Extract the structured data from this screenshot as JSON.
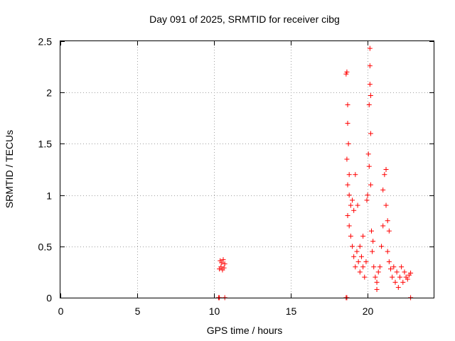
{
  "chart_data": {
    "type": "scatter",
    "title": "Day 091 of 2025, SRMTID for receiver cibg",
    "xlabel": "GPS time / hours",
    "ylabel": "SRMTID / TECUs",
    "xlim": [
      0,
      24.3
    ],
    "ylim": [
      0,
      2.5
    ],
    "xticks": [
      0,
      5,
      10,
      15,
      20
    ],
    "xtick_labels": [
      "0",
      "5",
      "10",
      "15",
      "20"
    ],
    "yticks": [
      0,
      0.5,
      1,
      1.5,
      2,
      2.5
    ],
    "ytick_labels": [
      "0",
      "0.5",
      "1",
      "1.5",
      "2",
      "2.5"
    ],
    "grid": true,
    "marker": "+",
    "series": [
      {
        "name": "cibg",
        "color": "#ff0000",
        "points": [
          [
            10.3,
            0.0
          ],
          [
            10.35,
            0.0
          ],
          [
            10.7,
            0.0
          ],
          [
            10.35,
            0.28
          ],
          [
            10.4,
            0.36
          ],
          [
            10.45,
            0.3
          ],
          [
            10.5,
            0.34
          ],
          [
            10.55,
            0.27
          ],
          [
            10.6,
            0.37
          ],
          [
            10.65,
            0.29
          ],
          [
            10.7,
            0.33
          ],
          [
            18.6,
            0.0
          ],
          [
            18.65,
            0.0
          ],
          [
            22.8,
            0.0
          ],
          [
            18.6,
            2.18
          ],
          [
            18.65,
            2.2
          ],
          [
            18.7,
            1.88
          ],
          [
            18.65,
            1.35
          ],
          [
            18.7,
            1.7
          ],
          [
            18.75,
            1.5
          ],
          [
            18.8,
            1.2
          ],
          [
            18.7,
            1.1
          ],
          [
            18.8,
            1.0
          ],
          [
            18.9,
            0.9
          ],
          [
            18.7,
            0.8
          ],
          [
            18.8,
            0.7
          ],
          [
            18.9,
            0.6
          ],
          [
            19.0,
            0.95
          ],
          [
            19.1,
            0.85
          ],
          [
            19.0,
            0.5
          ],
          [
            19.1,
            0.4
          ],
          [
            19.2,
            1.2
          ],
          [
            19.2,
            0.3
          ],
          [
            19.3,
            0.45
          ],
          [
            19.35,
            0.9
          ],
          [
            19.4,
            0.35
          ],
          [
            19.5,
            0.5
          ],
          [
            19.5,
            0.25
          ],
          [
            19.6,
            0.4
          ],
          [
            19.7,
            0.3
          ],
          [
            19.7,
            0.6
          ],
          [
            19.8,
            0.2
          ],
          [
            19.9,
            0.35
          ],
          [
            19.95,
            0.95
          ],
          [
            20.0,
            1.0
          ],
          [
            20.05,
            1.4
          ],
          [
            20.1,
            1.28
          ],
          [
            20.1,
            1.88
          ],
          [
            20.15,
            2.08
          ],
          [
            20.15,
            2.26
          ],
          [
            20.15,
            2.43
          ],
          [
            20.2,
            1.97
          ],
          [
            20.2,
            1.6
          ],
          [
            20.2,
            1.1
          ],
          [
            20.25,
            0.65
          ],
          [
            20.3,
            0.45
          ],
          [
            20.35,
            0.55
          ],
          [
            20.4,
            0.3
          ],
          [
            20.5,
            0.2
          ],
          [
            20.6,
            0.15
          ],
          [
            20.6,
            0.08
          ],
          [
            20.7,
            0.25
          ],
          [
            20.8,
            0.3
          ],
          [
            20.9,
            0.5
          ],
          [
            21.0,
            0.7
          ],
          [
            21.0,
            1.05
          ],
          [
            21.1,
            1.2
          ],
          [
            21.2,
            1.25
          ],
          [
            21.2,
            0.9
          ],
          [
            21.3,
            0.75
          ],
          [
            21.3,
            0.45
          ],
          [
            21.4,
            0.35
          ],
          [
            21.4,
            0.65
          ],
          [
            21.5,
            0.28
          ],
          [
            21.6,
            0.2
          ],
          [
            21.7,
            0.3
          ],
          [
            21.8,
            0.15
          ],
          [
            21.9,
            0.25
          ],
          [
            22.0,
            0.1
          ],
          [
            22.1,
            0.2
          ],
          [
            22.2,
            0.3
          ],
          [
            22.3,
            0.15
          ],
          [
            22.4,
            0.25
          ],
          [
            22.5,
            0.2
          ],
          [
            22.6,
            0.18
          ],
          [
            22.7,
            0.22
          ],
          [
            22.8,
            0.24
          ]
        ]
      }
    ]
  }
}
